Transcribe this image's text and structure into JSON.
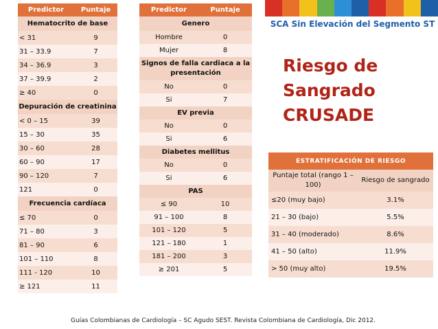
{
  "table1": {
    "headers": [
      "Predictor",
      "Puntaje"
    ],
    "sections": [
      {
        "title": "Hematocrito de base",
        "rows": [
          [
            "< 31",
            "9"
          ],
          [
            "31 – 33.9",
            "7"
          ],
          [
            "34 – 36.9",
            "3"
          ],
          [
            "37 – 39.9",
            "2"
          ],
          [
            "≥ 40",
            "0"
          ]
        ]
      },
      {
        "title": "Depuración de creatinina",
        "rows": [
          [
            "< 0 – 15",
            "39"
          ],
          [
            "15 – 30",
            "35"
          ],
          [
            "30 – 60",
            "28"
          ],
          [
            "60 – 90",
            "17"
          ],
          [
            "90 – 120",
            "7"
          ],
          [
            "121",
            "0"
          ]
        ]
      },
      {
        "title": "Frecuencia cardíaca",
        "rows": [
          [
            "≤ 70",
            "0"
          ],
          [
            "71 – 80",
            "3"
          ],
          [
            "81 – 90",
            "6"
          ],
          [
            "101 – 110",
            "8"
          ],
          [
            "111 - 120",
            "10"
          ],
          [
            "≥ 121",
            "11"
          ]
        ]
      }
    ]
  },
  "table2": {
    "headers": [
      "Predictor",
      "Puntaje"
    ],
    "sections": [
      {
        "title": "Genero",
        "rows": [
          [
            "Hombre",
            "0"
          ],
          [
            "Mujer",
            "8"
          ]
        ]
      },
      {
        "title": "Signos de falla cardiaca a la presentación",
        "rows": [
          [
            "No",
            "0"
          ],
          [
            "Si",
            "7"
          ]
        ]
      },
      {
        "title": "EV previa",
        "rows": [
          [
            "No",
            "0"
          ],
          [
            "Si",
            "6"
          ]
        ]
      },
      {
        "title": "Diabetes mellitus",
        "rows": [
          [
            "No",
            "0"
          ],
          [
            "Si",
            "6"
          ]
        ]
      },
      {
        "title": "PAS",
        "rows": [
          [
            "≤ 90",
            "10"
          ],
          [
            "91 – 100",
            "8"
          ],
          [
            "101 – 120",
            "5"
          ],
          [
            "121 – 180",
            "1"
          ],
          [
            "181 – 200",
            "3"
          ],
          [
            "≥ 201",
            "5"
          ]
        ]
      }
    ]
  },
  "subtitle": "SCA Sin Elevación del Segmento ST",
  "title_lines": [
    "Riesgo de",
    "Sangrado",
    "CRUSADE"
  ],
  "risk": {
    "header": "ESTRATIFICACIÓN DE RIESGO",
    "col1": "Puntaje total (rango 1 – 100)",
    "col2": "Riesgo de sangrado",
    "rows": [
      [
        "≤20 (muy bajo)",
        "3.1%"
      ],
      [
        "21 – 30 (bajo)",
        "5.5%"
      ],
      [
        "31 – 40 (moderado)",
        "8.6%"
      ],
      [
        "41 – 50 (alto)",
        "11.9%"
      ],
      [
        "> 50 (muy alto)",
        "19.5%"
      ]
    ]
  },
  "footer": "Guías Colombianas de Cardiología – SC Agudo SEST. Revista Colombiana de Cardiología, Dic 2012.",
  "banner_colors": [
    "#d93025",
    "#e8702a",
    "#f2c21b",
    "#6ab04c",
    "#2d8fd5",
    "#1f5fa8",
    "#d93025",
    "#e8702a",
    "#f2c21b",
    "#1f5fa8"
  ],
  "colors": {
    "header": "#e0713a",
    "title": "#b02418",
    "subtitle": "#1f5fa8"
  }
}
